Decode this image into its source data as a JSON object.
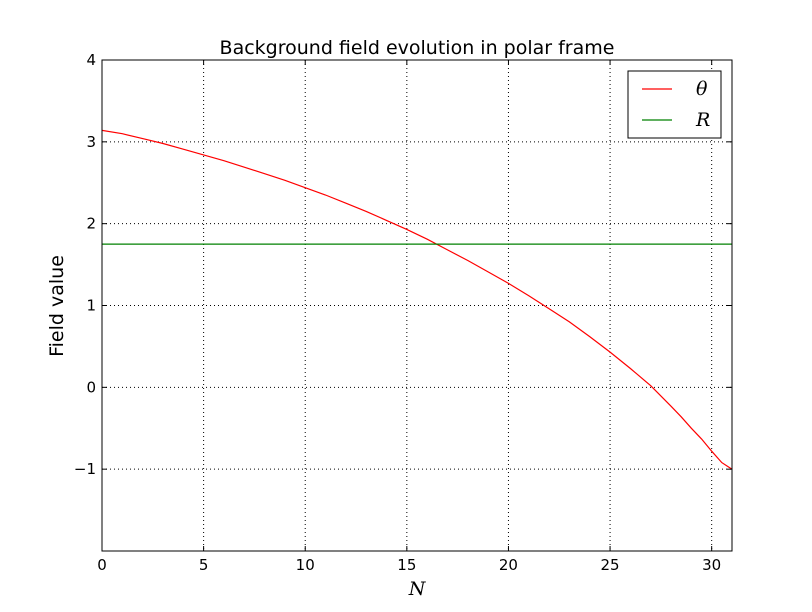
{
  "chart_data": {
    "type": "line",
    "title": "Background field evolution in polar frame",
    "xlabel": "N",
    "ylabel": "Field value",
    "xlim": [
      0,
      31
    ],
    "ylim": [
      -2,
      4
    ],
    "xticks": [
      0,
      5,
      10,
      15,
      20,
      25,
      30
    ],
    "yticks": [
      -1,
      0,
      1,
      2,
      3,
      4
    ],
    "grid": true,
    "legend_position": "top-right",
    "series": [
      {
        "name": "θ",
        "color": "#ff0000",
        "x": [
          0,
          1,
          2,
          3,
          4,
          5,
          6,
          7,
          8,
          9,
          10,
          11,
          12,
          13,
          14,
          15,
          16,
          17,
          18,
          19,
          20,
          21,
          22,
          23,
          24,
          25,
          26,
          27,
          28,
          28.5,
          29,
          29.5,
          30,
          30.5,
          31
        ],
        "y": [
          3.14,
          3.1,
          3.04,
          2.98,
          2.91,
          2.84,
          2.77,
          2.69,
          2.61,
          2.53,
          2.44,
          2.35,
          2.25,
          2.15,
          2.04,
          1.93,
          1.81,
          1.68,
          1.55,
          1.41,
          1.27,
          1.12,
          0.96,
          0.8,
          0.62,
          0.43,
          0.23,
          0.02,
          -0.23,
          -0.36,
          -0.5,
          -0.63,
          -0.78,
          -0.92,
          -1.0
        ]
      },
      {
        "name": "R",
        "color": "#008000",
        "x": [
          0,
          31
        ],
        "y": [
          1.75,
          1.75
        ]
      }
    ]
  }
}
